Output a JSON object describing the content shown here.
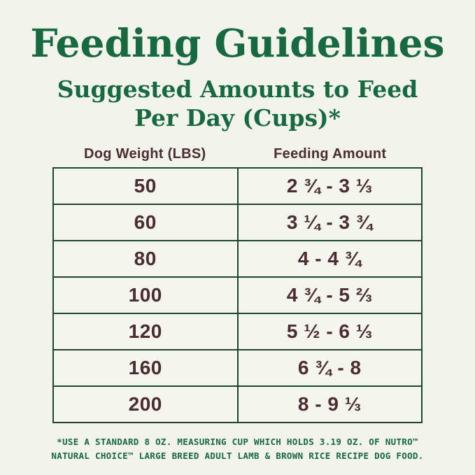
{
  "page": {
    "title": "Feeding Guidelines",
    "subtitle_lines": [
      "Suggested Amounts to Feed",
      "Per Day (Cups)*"
    ]
  },
  "colors": {
    "background": "#f2f3ea",
    "title_green": "#17693f",
    "text_brown": "#4b2b34",
    "border_green": "#1c4631",
    "footnote_green": "#17693f"
  },
  "table": {
    "columns": [
      "Dog Weight (LBS)",
      "Feeding Amount"
    ],
    "rows": [
      {
        "weight": "50",
        "amount": "2 ¾ - 3 ⅓"
      },
      {
        "weight": "60",
        "amount": "3 ¼ - 3 ¾"
      },
      {
        "weight": "80",
        "amount": "4 - 4 ¾"
      },
      {
        "weight": "100",
        "amount": "4 ¾ - 5 ⅔"
      },
      {
        "weight": "120",
        "amount": "5 ½ - 6 ⅓"
      },
      {
        "weight": "160",
        "amount": "6 ¾ - 8"
      },
      {
        "weight": "200",
        "amount": "8 - 9 ⅓"
      }
    ]
  },
  "footnote_lines": [
    "*USE A STANDARD 8 OZ. MEASURING CUP WHICH HOLDS 3.19 OZ. OF NUTRO™",
    "NATURAL CHOICE™ LARGE BREED ADULT LAMB & BROWN RICE RECIPE DOG FOOD."
  ]
}
